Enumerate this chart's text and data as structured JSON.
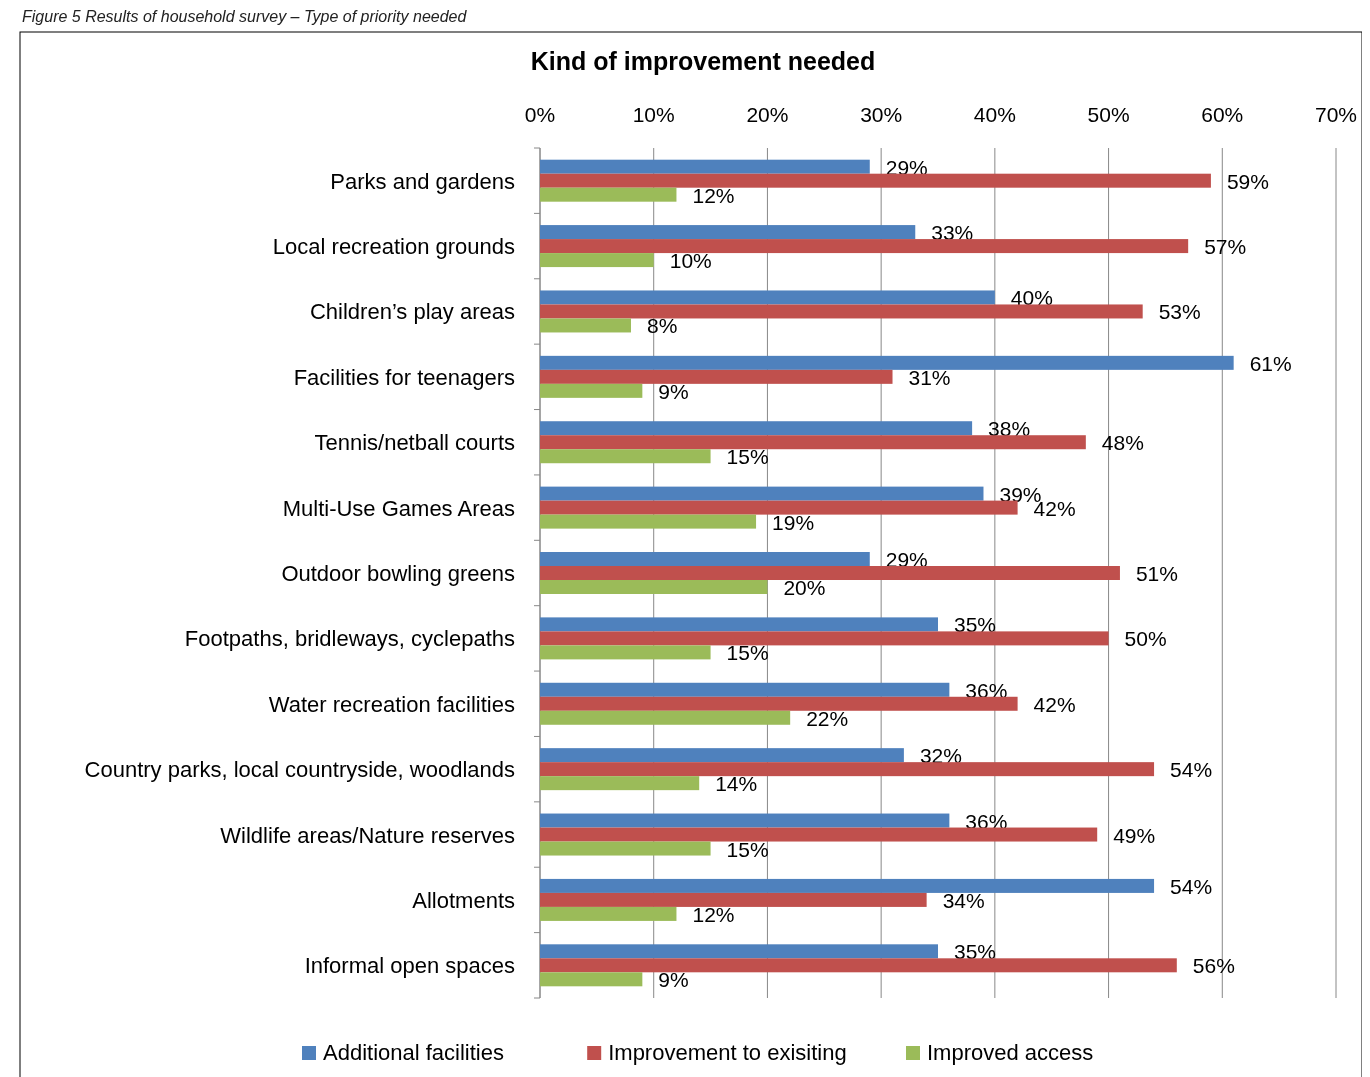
{
  "chart_data": {
    "type": "bar",
    "orientation": "horizontal",
    "title": "Kind of improvement needed",
    "annotations": [
      "Figure 5     Results of household survey – Type of priority needed"
    ],
    "categories": [
      "Parks and gardens",
      "Local recreation grounds",
      "Children’s play areas",
      "Facilities for teenagers",
      "Tennis/netball courts",
      "Multi-Use Games Areas",
      "Outdoor bowling greens",
      "Footpaths, bridleways, cyclepaths",
      "Water recreation facilities",
      "Country parks, local countryside, woodlands",
      "Wildlife areas/Nature reserves",
      "Allotments",
      "Informal open spaces"
    ],
    "series": [
      {
        "name": "Additional facilities",
        "color": "#4f81bd",
        "values": [
          29,
          33,
          40,
          61,
          38,
          39,
          29,
          35,
          36,
          32,
          36,
          54,
          35
        ],
        "value_labels": [
          "29%",
          "33%",
          "40%",
          "61%",
          "38%",
          "39%",
          "29%",
          "35%",
          "36%",
          "32%",
          "36%",
          "54%",
          "35%"
        ]
      },
      {
        "name": "Improvement to exisiting",
        "color": "#c0504d",
        "values": [
          59,
          57,
          53,
          31,
          48,
          42,
          51,
          50,
          42,
          54,
          49,
          34,
          56
        ],
        "value_labels": [
          "59%",
          "57%",
          "53%",
          "31%",
          "48%",
          "42%",
          "51%",
          "50%",
          "42%",
          "54%",
          "49%",
          "34%",
          "56%"
        ]
      },
      {
        "name": "Improved access",
        "color": "#9bbb59",
        "values": [
          12,
          10,
          8,
          9,
          15,
          19,
          20,
          15,
          22,
          14,
          15,
          12,
          9
        ],
        "value_labels": [
          "12%",
          "10%",
          "8%",
          "9%",
          "15%",
          "19%",
          "20%",
          "15%",
          "22%",
          "14%",
          "15%",
          "12%",
          "9%"
        ]
      }
    ],
    "xlim": [
      0,
      70
    ],
    "xticks": [
      {
        "value": 0,
        "label": "0%"
      },
      {
        "value": 10,
        "label": "10%"
      },
      {
        "value": 20,
        "label": "20%"
      },
      {
        "value": 30,
        "label": "30%"
      },
      {
        "value": 40,
        "label": "40%"
      },
      {
        "value": 50,
        "label": "50%"
      },
      {
        "value": 60,
        "label": "60%"
      },
      {
        "value": 70,
        "label": "70%"
      }
    ],
    "grid": "x",
    "legend": "bottom"
  }
}
